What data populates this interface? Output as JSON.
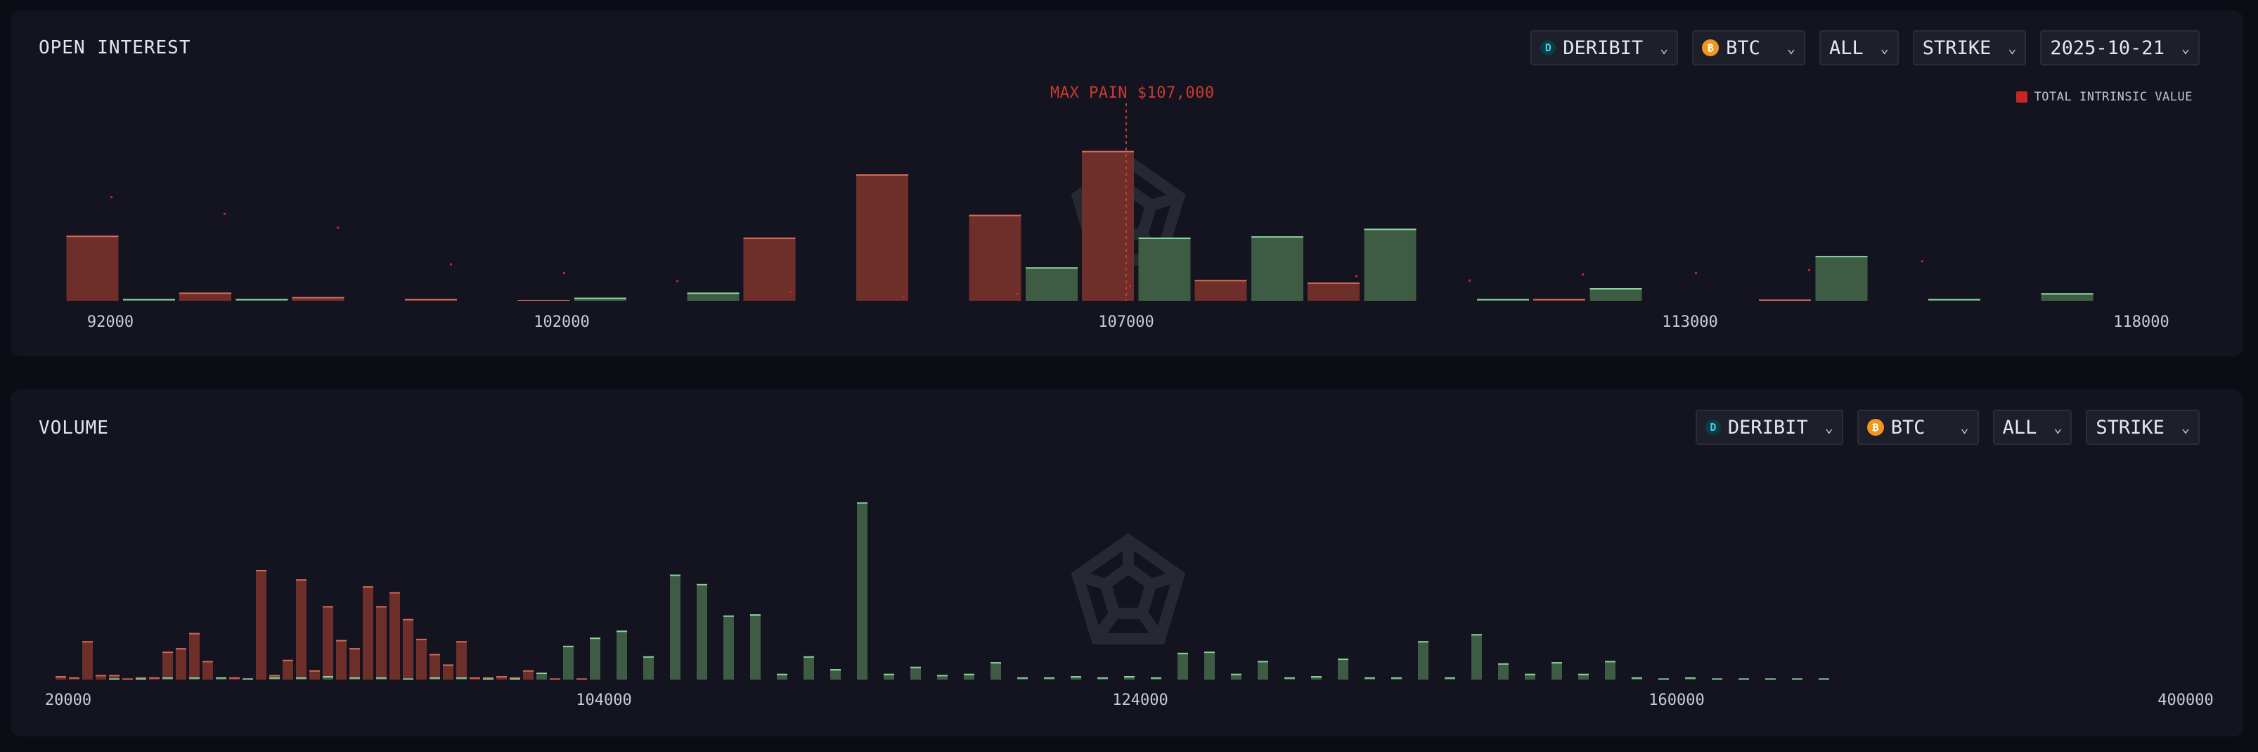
{
  "open_interest": {
    "title": "OPEN INTEREST",
    "controls": {
      "exchange": "DERIBIT",
      "asset": "BTC",
      "filter": "ALL",
      "mode": "STRIKE",
      "expiry": "2025-10-21"
    },
    "max_pain_label": "MAX PAIN $107,000",
    "legend_label": "TOTAL INTRINSIC VALUE",
    "x_tick_labels": [
      "92000",
      "102000",
      "107000",
      "113000",
      "118000"
    ]
  },
  "volume": {
    "title": "VOLUME",
    "controls": {
      "exchange": "DERIBIT",
      "asset": "BTC",
      "filter": "ALL",
      "mode": "STRIKE"
    },
    "x_tick_labels": [
      "20000",
      "104000",
      "124000",
      "160000",
      "400000"
    ]
  },
  "icons": {
    "exchange": "deribit-logo-icon",
    "asset": "bitcoin-icon",
    "dropdown": "chevron-down-icon",
    "watermark": "brand-watermark-logo"
  },
  "colors": {
    "put": "#6e2e29",
    "put_edge": "#d3695a",
    "call": "#3d5c43",
    "call_edge": "#88d39c",
    "intrinsic": "#c92525",
    "max_pain": "#cc3a30"
  },
  "chart_data": [
    {
      "type": "bar",
      "title": "OPEN INTEREST",
      "series_order": "groups of [puts, calls] per strike position, relative units",
      "groups": [
        {
          "puts": 0,
          "calls": 0
        },
        {
          "puts": 10.3,
          "calls": 0
        },
        {
          "puts": 1.3,
          "calls": 0.3
        },
        {
          "puts": 0.6,
          "calls": 0.3
        },
        {
          "puts": 0.3,
          "calls": 0
        },
        {
          "puts": 0.1,
          "calls": 0
        },
        {
          "puts": 0,
          "calls": 0.5
        },
        {
          "puts": 10.0,
          "calls": 1.3
        },
        {
          "puts": 20.0,
          "calls": 0
        },
        {
          "puts": 13.6,
          "calls": 0
        },
        {
          "puts": 23.7,
          "calls": 5.3
        },
        {
          "puts": 3.3,
          "calls": 10.0
        },
        {
          "puts": 2.9,
          "calls": 10.2
        },
        {
          "puts": 0,
          "calls": 11.4
        },
        {
          "puts": 0.3,
          "calls": 0.3
        },
        {
          "puts": 0,
          "calls": 2.0
        },
        {
          "puts": 0.2,
          "calls": 0
        },
        {
          "puts": 0,
          "calls": 7.1
        },
        {
          "puts": 0,
          "calls": 0.3
        },
        {
          "puts": 0,
          "calls": 1.2
        }
      ],
      "intrinsic_points": [
        24,
        20.2,
        17,
        8.6,
        6.6,
        4.8,
        2.2,
        1.2,
        1.8,
        3.6,
        4.5,
        5.9,
        4.9,
        6.3,
        6.6,
        7.3,
        9.3
      ]
    },
    {
      "type": "bar",
      "title": "VOLUME",
      "puts": [
        0.3,
        0.2,
        3.3,
        0.4,
        0.4,
        0.1,
        0.2,
        0.2,
        2.4,
        2.7,
        4.0,
        1.6,
        0.2,
        0.2,
        0.1,
        9.4,
        0.4,
        1.7,
        8.6,
        0.8,
        6.3,
        3.4,
        2.7,
        8.0,
        6.3,
        7.5,
        5.2,
        3.5,
        2.2,
        1.3,
        3.3,
        0.2,
        0.2,
        0.3,
        0.2,
        0.8,
        0.2,
        0.1,
        0.1,
        0.1,
        0.1
      ],
      "calls": [
        0.1,
        0.1,
        0.2,
        0.2,
        0.2,
        0.1,
        0.2,
        0.2,
        0.3,
        0.2,
        0.2,
        0.1,
        0.2,
        0.2,
        0.1,
        0.1,
        0.6,
        2.9,
        3.6,
        4.2,
        2.0,
        9.0,
        8.2,
        5.5,
        5.6,
        0.5,
        2.0,
        0.9,
        15.2,
        0.5,
        1.1,
        0.4,
        0.5,
        1.5,
        0.2,
        0.2,
        0.3,
        0.2,
        0.3,
        0.2,
        2.3,
        2.4,
        0.5,
        1.6,
        0.2,
        0.3,
        1.8,
        0.2,
        0.2,
        3.3,
        0.2,
        3.9,
        1.4,
        0.5,
        1.5,
        0.5,
        1.6,
        0.2,
        0.1,
        0.2,
        0.1,
        0.1,
        0.1,
        0.1,
        0.1
      ]
    }
  ]
}
